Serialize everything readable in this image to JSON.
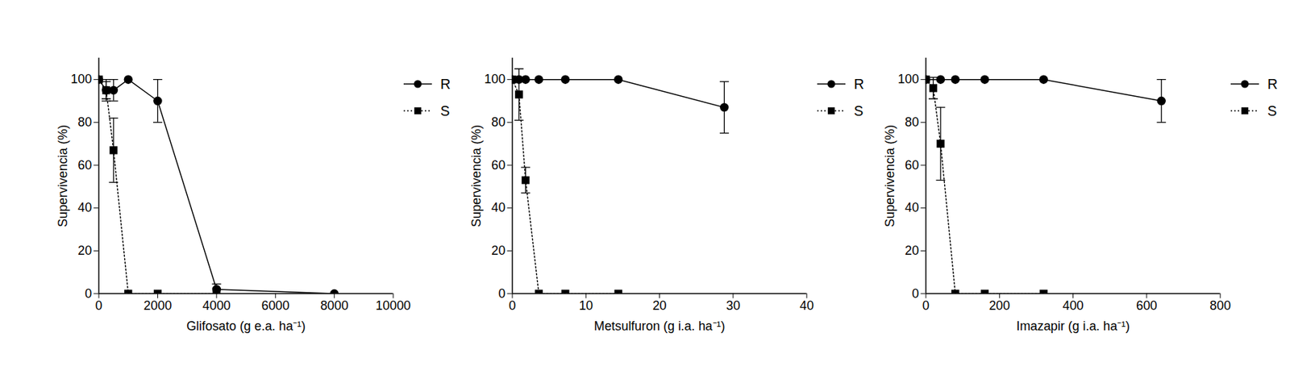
{
  "chart_data": [
    {
      "type": "line",
      "x_label": "Glifosato (g e.a. ha⁻¹)",
      "y_label": "Supervivencia (%)",
      "xlim": [
        0,
        10000
      ],
      "xticks": [
        0,
        2000,
        4000,
        6000,
        8000,
        10000
      ],
      "ylim": [
        0,
        110
      ],
      "yticks": [
        0,
        20,
        40,
        60,
        80,
        100
      ],
      "legend": "right",
      "series": [
        {
          "name": "R",
          "color": "#000000",
          "marker": "circle",
          "line_style": "solid",
          "x": [
            0,
            250,
            500,
            1000,
            2000,
            4000,
            8000
          ],
          "values": [
            100,
            95,
            95,
            100,
            90,
            2,
            0
          ],
          "error": [
            null,
            5,
            5,
            null,
            10,
            2.5,
            null
          ]
        },
        {
          "name": "S",
          "color": "#000000",
          "marker": "square",
          "line_style": "dotted",
          "x": [
            0,
            250,
            500,
            1000,
            2000,
            4000
          ],
          "values": [
            100,
            95,
            67,
            0,
            0,
            0
          ],
          "error": [
            null,
            4,
            15,
            null,
            null,
            null
          ]
        }
      ]
    },
    {
      "type": "line",
      "x_label": "Metsulfuron (g i.a. ha⁻¹)",
      "y_label": "Supervivencia (%)",
      "xlim": [
        0,
        40
      ],
      "xticks": [
        0,
        10,
        20,
        30,
        40
      ],
      "ylim": [
        0,
        110
      ],
      "yticks": [
        0,
        20,
        40,
        60,
        80,
        100
      ],
      "legend": "right",
      "series": [
        {
          "name": "R",
          "color": "#000000",
          "marker": "circle",
          "line_style": "solid",
          "x": [
            0,
            0.9,
            1.8,
            3.6,
            7.2,
            14.4,
            28.8
          ],
          "values": [
            100,
            100,
            100,
            100,
            100,
            100,
            87
          ],
          "error": [
            null,
            null,
            null,
            null,
            null,
            null,
            12
          ]
        },
        {
          "name": "S",
          "color": "#000000",
          "marker": "square",
          "line_style": "dotted",
          "x": [
            0,
            0.9,
            1.8,
            3.6,
            7.2,
            14.4
          ],
          "values": [
            100,
            93,
            53,
            0,
            0,
            0
          ],
          "error": [
            null,
            12,
            6,
            null,
            null,
            null
          ]
        }
      ]
    },
    {
      "type": "line",
      "x_label": "Imazapir (g i.a. ha⁻¹)",
      "y_label": "Supervivencia (%)",
      "xlim": [
        0,
        800
      ],
      "xticks": [
        0,
        200,
        400,
        600,
        800
      ],
      "ylim": [
        0,
        110
      ],
      "yticks": [
        0,
        20,
        40,
        60,
        80,
        100
      ],
      "legend": "right",
      "series": [
        {
          "name": "R",
          "color": "#000000",
          "marker": "circle",
          "line_style": "solid",
          "x": [
            0,
            40,
            80,
            160,
            320,
            640
          ],
          "values": [
            100,
            100,
            100,
            100,
            100,
            90
          ],
          "error": [
            null,
            null,
            null,
            null,
            null,
            10
          ]
        },
        {
          "name": "S",
          "color": "#000000",
          "marker": "square",
          "line_style": "dotted",
          "x": [
            0,
            20,
            40,
            80,
            160,
            320
          ],
          "values": [
            100,
            96,
            70,
            0,
            0,
            0
          ],
          "error": [
            null,
            5,
            17,
            null,
            null,
            null
          ]
        }
      ]
    }
  ]
}
